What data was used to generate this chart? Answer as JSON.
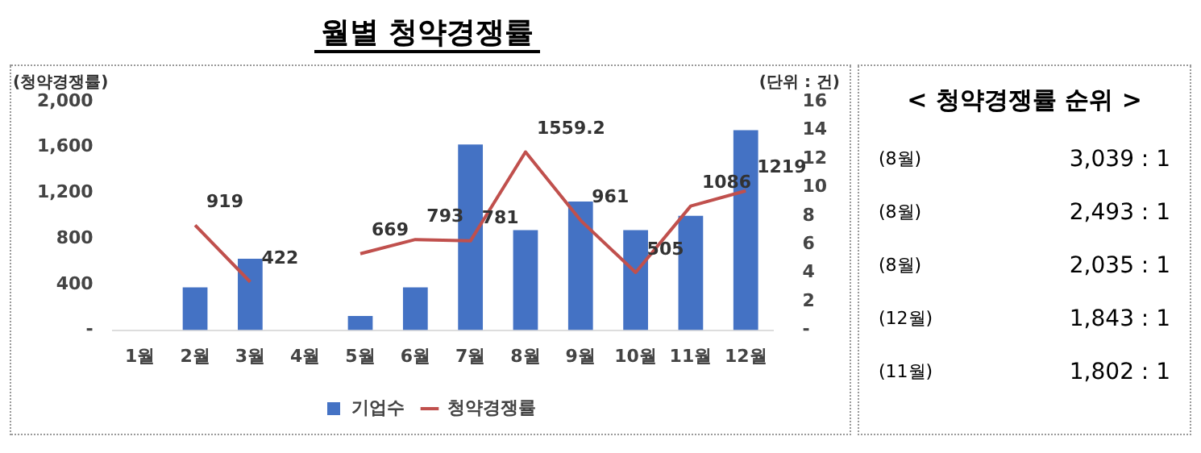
{
  "chart_data": [
    {
      "type": "bar",
      "title": "월별 청약경쟁률",
      "ylabel": "(청약경쟁률)",
      "y2label": "(단위 : 건)",
      "categories": [
        "1월",
        "2월",
        "3월",
        "4월",
        "5월",
        "6월",
        "7월",
        "8월",
        "9월",
        "10월",
        "11월",
        "12월"
      ],
      "series": [
        {
          "name": "기업수",
          "type": "bar",
          "axis": "y2",
          "color": "#4472c4",
          "values": [
            0,
            3,
            5,
            0,
            1,
            3,
            13,
            7,
            9,
            7,
            8,
            14
          ]
        },
        {
          "name": "청약경쟁률",
          "type": "line",
          "axis": "y",
          "color": "#c0504d",
          "values": [
            null,
            919,
            422,
            null,
            669,
            793,
            781,
            1559.2,
            961,
            505,
            1086,
            1219
          ],
          "value_labels": [
            null,
            "919",
            "422",
            null,
            "669",
            "793",
            "781",
            "1559.2",
            "961",
            "505",
            "1086",
            "1219"
          ]
        }
      ],
      "ylim": [
        0,
        2000
      ],
      "yticks": [
        {
          "value": 0,
          "label": "-"
        },
        400,
        {
          "value": 800,
          "label": "800"
        },
        {
          "value": 1200,
          "label": "1,200"
        },
        {
          "value": 1600,
          "label": "1,600"
        },
        {
          "value": 2000,
          "label": "2,000"
        }
      ],
      "y2lim": [
        0,
        16
      ],
      "y2ticks": [
        {
          "value": 0,
          "label": "-"
        },
        2,
        4,
        6,
        8,
        10,
        12,
        14,
        16
      ],
      "grid": false,
      "legend": "bottom",
      "marker": "none"
    },
    {
      "type": "other",
      "title": "< 청약경쟁률 순위 >",
      "annotations": [
        "(8월)",
        "3,039 : 1",
        "(8월)",
        "2,493 : 1",
        "(8월)",
        "2,035 : 1",
        "(12월)",
        "1,843 : 1",
        "(11월)",
        "1,802 : 1"
      ]
    }
  ]
}
